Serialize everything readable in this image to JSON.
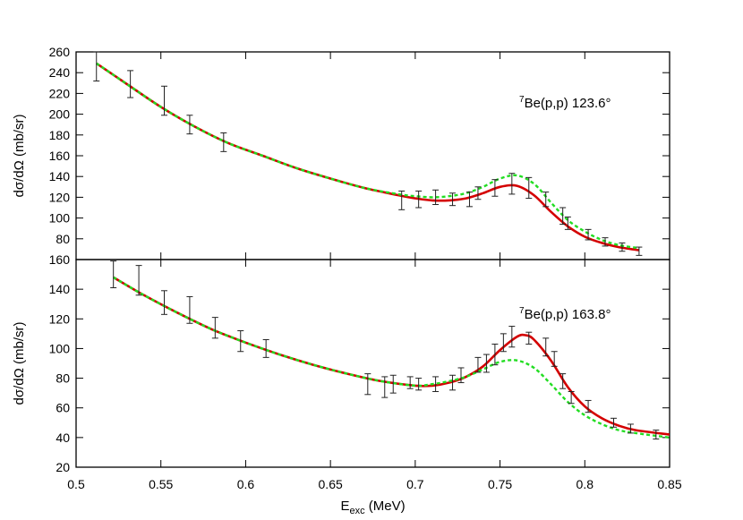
{
  "chart_data": [
    {
      "type": "line",
      "title": "",
      "annotation": {
        "sup": "7",
        "text": "Be(p,p) 123.6°"
      },
      "xlabel": "",
      "ylabel": "dσ/dΩ (mb/sr)",
      "xlim": [
        0.5,
        0.85
      ],
      "ylim": [
        60,
        260
      ],
      "yticks": [
        80,
        100,
        120,
        140,
        160,
        180,
        200,
        220,
        240,
        260
      ],
      "grid": false,
      "series": [
        {
          "color": "#d40000",
          "style": "solid",
          "x": [
            0.512,
            0.53,
            0.55,
            0.57,
            0.59,
            0.61,
            0.63,
            0.65,
            0.67,
            0.69,
            0.7,
            0.71,
            0.72,
            0.73,
            0.74,
            0.75,
            0.76,
            0.77,
            0.78,
            0.79,
            0.8,
            0.81,
            0.82,
            0.832
          ],
          "y": [
            249,
            229,
            207,
            188,
            172,
            160,
            148,
            138,
            129,
            122,
            119,
            117,
            117,
            119,
            124,
            130,
            131,
            122,
            106,
            92,
            82,
            76,
            72,
            69
          ]
        },
        {
          "color": "#22dd22",
          "style": "dashed",
          "x": [
            0.512,
            0.53,
            0.55,
            0.57,
            0.59,
            0.61,
            0.63,
            0.65,
            0.67,
            0.69,
            0.7,
            0.71,
            0.72,
            0.73,
            0.74,
            0.75,
            0.76,
            0.77,
            0.78,
            0.79,
            0.8,
            0.81,
            0.82,
            0.832
          ],
          "y": [
            249,
            229,
            207,
            188,
            172,
            160,
            148,
            138,
            129,
            123,
            121,
            120,
            121,
            124,
            130,
            138,
            141,
            133,
            115,
            98,
            87,
            79,
            74,
            71
          ]
        }
      ],
      "data_points": [
        {
          "x": 0.512,
          "y": 246,
          "err": 14
        },
        {
          "x": 0.532,
          "y": 229,
          "err": 13
        },
        {
          "x": 0.552,
          "y": 213,
          "err": 14
        },
        {
          "x": 0.567,
          "y": 190,
          "err": 9
        },
        {
          "x": 0.587,
          "y": 173,
          "err": 9
        },
        {
          "x": 0.692,
          "y": 117,
          "err": 9
        },
        {
          "x": 0.702,
          "y": 118,
          "err": 8
        },
        {
          "x": 0.712,
          "y": 120,
          "err": 7
        },
        {
          "x": 0.722,
          "y": 118,
          "err": 6
        },
        {
          "x": 0.732,
          "y": 118,
          "err": 7
        },
        {
          "x": 0.737,
          "y": 124,
          "err": 6
        },
        {
          "x": 0.747,
          "y": 129,
          "err": 8
        },
        {
          "x": 0.757,
          "y": 133,
          "err": 10
        },
        {
          "x": 0.767,
          "y": 129,
          "err": 10
        },
        {
          "x": 0.777,
          "y": 118,
          "err": 7
        },
        {
          "x": 0.787,
          "y": 102,
          "err": 8
        },
        {
          "x": 0.79,
          "y": 95,
          "err": 6
        },
        {
          "x": 0.802,
          "y": 84,
          "err": 5
        },
        {
          "x": 0.812,
          "y": 77,
          "err": 4
        },
        {
          "x": 0.822,
          "y": 72,
          "err": 4
        },
        {
          "x": 0.832,
          "y": 68,
          "err": 4
        }
      ]
    },
    {
      "type": "line",
      "title": "",
      "annotation": {
        "sup": "7",
        "text": "Be(p,p) 163.8°"
      },
      "xlabel": {
        "main": "E",
        "sub": "exc",
        "tail": " (MeV)"
      },
      "ylabel": "dσ/dΩ (mb/sr)",
      "xlim": [
        0.5,
        0.85
      ],
      "ylim": [
        20,
        160
      ],
      "yticks": [
        20,
        40,
        60,
        80,
        100,
        120,
        140,
        160
      ],
      "xticks": [
        0.5,
        0.55,
        0.6,
        0.65,
        0.7,
        0.75,
        0.8,
        0.85
      ],
      "grid": false,
      "series": [
        {
          "color": "#d40000",
          "style": "solid",
          "x": [
            0.522,
            0.54,
            0.56,
            0.58,
            0.6,
            0.62,
            0.64,
            0.66,
            0.68,
            0.7,
            0.71,
            0.72,
            0.73,
            0.74,
            0.75,
            0.76,
            0.765,
            0.77,
            0.78,
            0.79,
            0.8,
            0.81,
            0.82,
            0.83,
            0.85
          ],
          "y": [
            148,
            136,
            124,
            113,
            104,
            96,
            89,
            83,
            78,
            75,
            75,
            77,
            81,
            88,
            99,
            108,
            109,
            106,
            92,
            74,
            61,
            53,
            48,
            45,
            42
          ]
        },
        {
          "color": "#22dd22",
          "style": "dashed",
          "x": [
            0.522,
            0.54,
            0.56,
            0.58,
            0.6,
            0.62,
            0.64,
            0.66,
            0.68,
            0.7,
            0.71,
            0.72,
            0.73,
            0.74,
            0.75,
            0.76,
            0.77,
            0.78,
            0.79,
            0.8,
            0.81,
            0.82,
            0.83,
            0.85
          ],
          "y": [
            148,
            136,
            124,
            113,
            104,
            96,
            89,
            83,
            78,
            75,
            76,
            78,
            81,
            86,
            91,
            92,
            87,
            76,
            64,
            55,
            49,
            45,
            43,
            40
          ]
        }
      ],
      "data_points": [
        {
          "x": 0.522,
          "y": 150,
          "err": 9
        },
        {
          "x": 0.537,
          "y": 146,
          "err": 10
        },
        {
          "x": 0.552,
          "y": 131,
          "err": 8
        },
        {
          "x": 0.567,
          "y": 126,
          "err": 9
        },
        {
          "x": 0.582,
          "y": 114,
          "err": 7
        },
        {
          "x": 0.597,
          "y": 105,
          "err": 7
        },
        {
          "x": 0.612,
          "y": 100,
          "err": 6
        },
        {
          "x": 0.672,
          "y": 76,
          "err": 7
        },
        {
          "x": 0.682,
          "y": 74,
          "err": 7
        },
        {
          "x": 0.687,
          "y": 76,
          "err": 6
        },
        {
          "x": 0.697,
          "y": 77,
          "err": 4
        },
        {
          "x": 0.702,
          "y": 76,
          "err": 4
        },
        {
          "x": 0.712,
          "y": 76,
          "err": 5
        },
        {
          "x": 0.722,
          "y": 77,
          "err": 5
        },
        {
          "x": 0.727,
          "y": 82,
          "err": 5
        },
        {
          "x": 0.737,
          "y": 89,
          "err": 5
        },
        {
          "x": 0.742,
          "y": 90,
          "err": 6
        },
        {
          "x": 0.747,
          "y": 96,
          "err": 7
        },
        {
          "x": 0.752,
          "y": 104,
          "err": 6
        },
        {
          "x": 0.757,
          "y": 108,
          "err": 7
        },
        {
          "x": 0.767,
          "y": 107,
          "err": 4
        },
        {
          "x": 0.777,
          "y": 101,
          "err": 6
        },
        {
          "x": 0.782,
          "y": 93,
          "err": 5
        },
        {
          "x": 0.787,
          "y": 78,
          "err": 5
        },
        {
          "x": 0.792,
          "y": 67,
          "err": 4
        },
        {
          "x": 0.802,
          "y": 61,
          "err": 4
        },
        {
          "x": 0.817,
          "y": 50,
          "err": 3
        },
        {
          "x": 0.827,
          "y": 46,
          "err": 3
        },
        {
          "x": 0.842,
          "y": 42,
          "err": 3
        }
      ]
    }
  ]
}
